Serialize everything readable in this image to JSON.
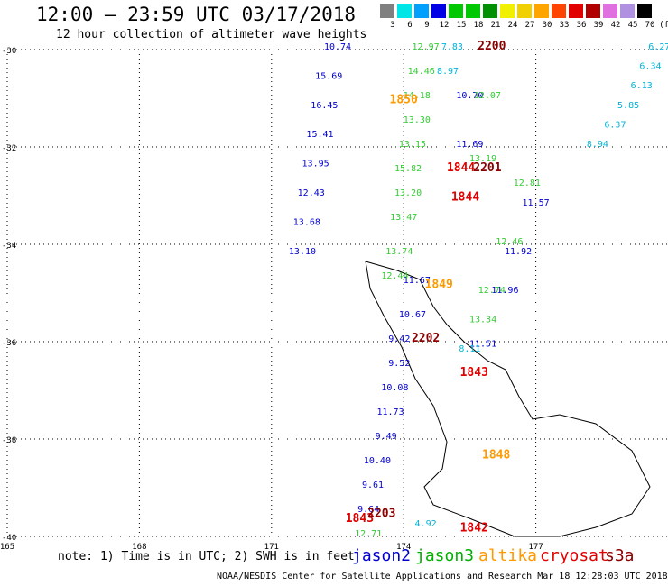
{
  "header": {
    "title": "12:00 – 23:59 UTC 03/17/2018",
    "subtitle": "12 hour collection of altimeter wave heights"
  },
  "color_scale": {
    "labels": [
      "3",
      "6",
      "9",
      "12",
      "15",
      "18",
      "21",
      "24",
      "27",
      "30",
      "33",
      "36",
      "39",
      "42",
      "45",
      "70"
    ],
    "unit": "(ft)",
    "colors": [
      "#808080",
      "#00e5e5",
      "#00a0ff",
      "#0000e5",
      "#00c800",
      "#00c800",
      "#009000",
      "#f0f000",
      "#f0d000",
      "#ffa500",
      "#ff4400",
      "#e00000",
      "#b00000",
      "#e070e0",
      "#b090e0",
      "#000000"
    ]
  },
  "footer": {
    "note": "note: 1) Time is in UTC; 2) SWH is in feet",
    "credit": "NOAA/NESDIS Center for Satellite Applications and Research   Mar 18 12:28:03 UTC 2018",
    "legend": [
      {
        "name": "jason2",
        "color": "#0000d0"
      },
      {
        "name": "jason3",
        "color": "#00b000"
      },
      {
        "name": "altika",
        "color": "#ff9900"
      },
      {
        "name": "cryosat",
        "color": "#e00000"
      },
      {
        "name": "s3a",
        "color": "#8b0000"
      }
    ]
  },
  "chart_data": {
    "type": "scatter",
    "xlim": [
      165,
      180
    ],
    "ylim": [
      -40,
      -30
    ],
    "x_ticks": [
      165,
      168,
      171,
      174,
      177
    ],
    "y_ticks": [
      -30,
      -32,
      -34,
      -36,
      -38,
      -40
    ],
    "grid": true,
    "legend_position": "bottom",
    "series": [
      {
        "name": "jason2",
        "points": [
          {
            "lat": -30.0,
            "lon": 172.5,
            "v": "10.74"
          },
          {
            "lat": -30.6,
            "lon": 172.3,
            "v": "15.69"
          },
          {
            "lat": -31.2,
            "lon": 172.2,
            "v": "16.45"
          },
          {
            "lat": -31.8,
            "lon": 172.1,
            "v": "15.41"
          },
          {
            "lat": -32.4,
            "lon": 172.0,
            "v": "13.95"
          },
          {
            "lat": -33.0,
            "lon": 171.9,
            "v": "12.43"
          },
          {
            "lat": -33.6,
            "lon": 171.8,
            "v": "13.68"
          },
          {
            "lat": -34.2,
            "lon": 171.7,
            "v": "13.10"
          },
          {
            "lat": -34.8,
            "lon": 174.3,
            "v": "11.67"
          },
          {
            "lat": -35.5,
            "lon": 174.2,
            "v": "10.67"
          },
          {
            "lat": -36.0,
            "lon": 173.9,
            "v": "9.42"
          },
          {
            "lat": -36.5,
            "lon": 173.9,
            "v": "9.52"
          },
          {
            "lat": -37.0,
            "lon": 173.8,
            "v": "10.08"
          },
          {
            "lat": -37.5,
            "lon": 173.7,
            "v": "11.73"
          },
          {
            "lat": -38.0,
            "lon": 173.6,
            "v": "9.49"
          },
          {
            "lat": -38.5,
            "lon": 173.4,
            "v": "10.40"
          },
          {
            "lat": -39.0,
            "lon": 173.3,
            "v": "9.61"
          },
          {
            "lat": -39.5,
            "lon": 173.2,
            "v": "9.64"
          },
          {
            "lat": -33.2,
            "lon": 177.0,
            "v": "11.57"
          },
          {
            "lat": -34.2,
            "lon": 176.6,
            "v": "11.92"
          },
          {
            "lat": -35.0,
            "lon": 176.3,
            "v": "11.96"
          },
          {
            "lat": -36.1,
            "lon": 175.8,
            "v": "11.51"
          },
          {
            "lat": -32.0,
            "lon": 175.5,
            "v": "11.69"
          },
          {
            "lat": -31.0,
            "lon": 175.5,
            "v": "10.70"
          }
        ]
      },
      {
        "name": "jason3",
        "points": [
          {
            "lat": -30.0,
            "lon": 174.5,
            "v": "12.97"
          },
          {
            "lat": -30.5,
            "lon": 174.4,
            "v": "14.46"
          },
          {
            "lat": -31.0,
            "lon": 174.3,
            "v": "14.18"
          },
          {
            "lat": -31.5,
            "lon": 174.3,
            "v": "13.30"
          },
          {
            "lat": -32.0,
            "lon": 174.2,
            "v": "13.15"
          },
          {
            "lat": -32.5,
            "lon": 174.1,
            "v": "15.82"
          },
          {
            "lat": -33.0,
            "lon": 174.1,
            "v": "13.20"
          },
          {
            "lat": -33.5,
            "lon": 174.0,
            "v": "13.47"
          },
          {
            "lat": -34.2,
            "lon": 173.9,
            "v": "13.74"
          },
          {
            "lat": -34.7,
            "lon": 173.8,
            "v": "12.44"
          },
          {
            "lat": -32.3,
            "lon": 175.8,
            "v": "13.19"
          },
          {
            "lat": -31.0,
            "lon": 175.9,
            "v": "12.07"
          },
          {
            "lat": -32.8,
            "lon": 176.8,
            "v": "12.81"
          },
          {
            "lat": -34.0,
            "lon": 176.4,
            "v": "12.46"
          },
          {
            "lat": -35.0,
            "lon": 176.0,
            "v": "12.74"
          },
          {
            "lat": -35.6,
            "lon": 175.8,
            "v": "13.34"
          },
          {
            "lat": -40.0,
            "lon": 173.2,
            "v": "12.71"
          }
        ]
      },
      {
        "name": "altika",
        "points": [
          {
            "lat": -31.1,
            "lon": 174.0,
            "v": "1850"
          },
          {
            "lat": -34.9,
            "lon": 174.8,
            "v": "1849"
          },
          {
            "lat": -38.4,
            "lon": 176.1,
            "v": "1848"
          }
        ]
      },
      {
        "name": "cryosat",
        "points": [
          {
            "lat": -32.5,
            "lon": 175.3,
            "v": "1844"
          },
          {
            "lat": -33.1,
            "lon": 175.4,
            "v": "1844"
          },
          {
            "lat": -36.7,
            "lon": 175.6,
            "v": "1843"
          },
          {
            "lat": -39.9,
            "lon": 175.6,
            "v": "1842"
          },
          {
            "lat": -39.7,
            "lon": 173.0,
            "v": "1843"
          }
        ]
      },
      {
        "name": "s3a",
        "points": [
          {
            "lat": -30.0,
            "lon": 176.0,
            "v": "2200"
          },
          {
            "lat": -32.5,
            "lon": 175.9,
            "v": "2201"
          },
          {
            "lat": -36.0,
            "lon": 174.5,
            "v": "2202"
          },
          {
            "lat": -39.6,
            "lon": 173.5,
            "v": "2203"
          }
        ]
      },
      {
        "name": "sentinel-track-cyan",
        "points": [
          {
            "lat": -30.0,
            "lon": 179.8,
            "v": "6.27"
          },
          {
            "lat": -30.4,
            "lon": 179.6,
            "v": "6.34"
          },
          {
            "lat": -30.8,
            "lon": 179.4,
            "v": "6.13"
          },
          {
            "lat": -31.2,
            "lon": 179.1,
            "v": "5.85"
          },
          {
            "lat": -31.6,
            "lon": 178.8,
            "v": "6.37"
          },
          {
            "lat": -32.0,
            "lon": 178.4,
            "v": "8.94"
          },
          {
            "lat": -36.2,
            "lon": 175.5,
            "v": "8.11"
          },
          {
            "lat": -39.8,
            "lon": 174.5,
            "v": "4.92"
          },
          {
            "lat": -30.0,
            "lon": 175.1,
            "v": "7.83"
          },
          {
            "lat": -30.5,
            "lon": 175.0,
            "v": "8.97"
          }
        ]
      }
    ]
  }
}
